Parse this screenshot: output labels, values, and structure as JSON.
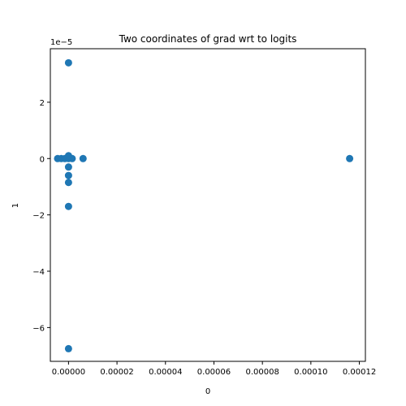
{
  "chart_data": {
    "type": "scatter",
    "title": "Two coordinates of grad wrt to logits",
    "xlabel": "0",
    "ylabel": "1",
    "y_offset_text": "1e−5",
    "xlim": [
      -7.5e-06,
      0.0001225
    ],
    "ylim": [
      -7.2,
      3.9
    ],
    "y_scale_note": "y values are in units of 1e-5",
    "x_ticks": [
      {
        "value": 0.0,
        "label": "0.00000"
      },
      {
        "value": 2e-05,
        "label": "0.00002"
      },
      {
        "value": 4e-05,
        "label": "0.00004"
      },
      {
        "value": 6e-05,
        "label": "0.00006"
      },
      {
        "value": 8e-05,
        "label": "0.00008"
      },
      {
        "value": 0.0001,
        "label": "0.00010"
      },
      {
        "value": 0.00012,
        "label": "0.00012"
      }
    ],
    "y_ticks": [
      {
        "value": 2,
        "label": "2"
      },
      {
        "value": 0,
        "label": "0"
      },
      {
        "value": -2,
        "label": "−2"
      },
      {
        "value": -4,
        "label": "−4"
      },
      {
        "value": -6,
        "label": "−6"
      }
    ],
    "grid": false,
    "color": "#1f77b4",
    "points": [
      {
        "x": 0.0,
        "y": 3.4
      },
      {
        "x": -4.5e-06,
        "y": 0.0
      },
      {
        "x": -3e-06,
        "y": 0.0
      },
      {
        "x": -1.5e-06,
        "y": 0.0
      },
      {
        "x": 0.0,
        "y": 0.0
      },
      {
        "x": 1.5e-06,
        "y": 0.0
      },
      {
        "x": 0.0,
        "y": 0.1
      },
      {
        "x": 0.0,
        "y": -0.3
      },
      {
        "x": 0.0,
        "y": -0.6
      },
      {
        "x": 0.0,
        "y": -0.85
      },
      {
        "x": 0.0,
        "y": -1.7
      },
      {
        "x": 6e-06,
        "y": 0.0
      },
      {
        "x": 0.000116,
        "y": 0.0
      },
      {
        "x": 0.0,
        "y": -6.75
      }
    ]
  }
}
